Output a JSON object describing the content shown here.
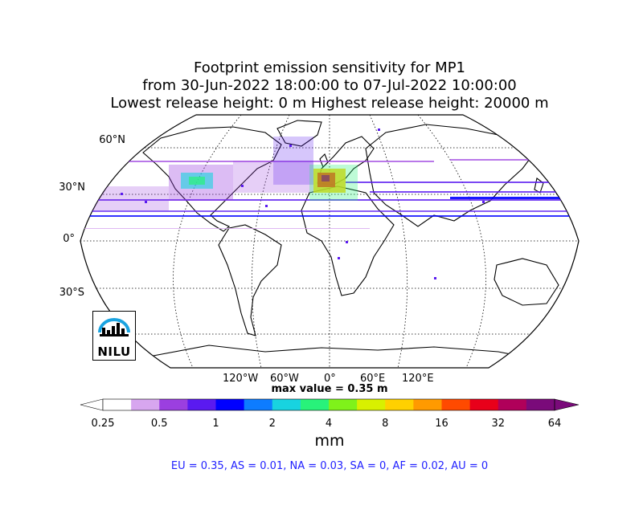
{
  "title": {
    "line1": "Footprint emission sensitivity for MP1",
    "line2": "from 30-Jun-2022 18:00:00 to 07-Jul-2022 10:00:00",
    "line3": "Lowest release height: 0 m       Highest release height: 20000 m"
  },
  "map": {
    "projection": "Robinson",
    "lat_labels": [
      "60°N",
      "30°N",
      "0°",
      "30°S"
    ],
    "lon_labels": [
      "120°W",
      "60°W",
      "0°",
      "60°E",
      "120°E"
    ],
    "max_value": "max value = 0.35 m",
    "logo": "NILU"
  },
  "colorbar": {
    "ticks": [
      "0.25",
      "0.5",
      "1",
      "2",
      "4",
      "8",
      "16",
      "32",
      "64"
    ],
    "unit": "mm",
    "colors": [
      "#ffffff",
      "#d7a6ef",
      "#9b3fe0",
      "#5a1af0",
      "#0000ff",
      "#0d7cff",
      "#18d3e0",
      "#28f27a",
      "#7ff21a",
      "#d8f000",
      "#ffd000",
      "#ff9a00",
      "#ff4a00",
      "#e8001a",
      "#b0005a",
      "#7a0a7a"
    ]
  },
  "summary": "EU = 0.35,  AS = 0.01,  NA = 0.03,  SA = 0,  AF = 0.02,  AU = 0"
}
